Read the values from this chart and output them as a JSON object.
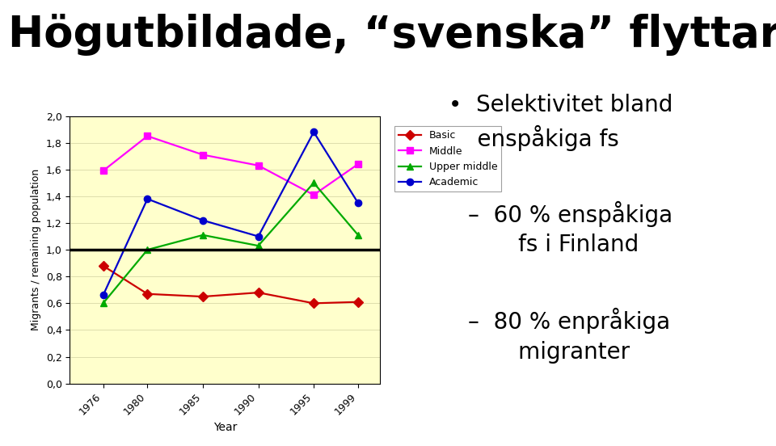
{
  "title": "Högutbildade, “svenska” flyttare",
  "years": [
    1976,
    1980,
    1985,
    1990,
    1995,
    1999
  ],
  "basic": [
    0.88,
    0.67,
    0.65,
    0.68,
    0.6,
    0.61
  ],
  "middle": [
    1.59,
    1.85,
    1.71,
    1.63,
    1.41,
    1.64
  ],
  "upper_middle": [
    0.6,
    1.0,
    1.11,
    1.03,
    1.5,
    1.11
  ],
  "academic": [
    0.66,
    1.38,
    1.22,
    1.1,
    1.88,
    1.35
  ],
  "basic_color": "#cc0000",
  "middle_color": "#ff00ff",
  "upper_middle_color": "#00aa00",
  "academic_color": "#0000cc",
  "plot_bg_color": "#ffffcc",
  "ylabel": "Migrants / remaining population",
  "xlabel": "Year",
  "ylim_min": 0.0,
  "ylim_max": 2.0,
  "ytick_step": 0.2,
  "legend_labels": [
    "Basic",
    "Middle",
    "Upper middle",
    "Academic"
  ],
  "right_bullet": "•  Selektivitet bland\n    enspåkiga fs",
  "right_sub1": "–  60 % enspåkiga\n       fs i Finland",
  "right_sub2": "–  80 % enpråkiga\n       migranter"
}
